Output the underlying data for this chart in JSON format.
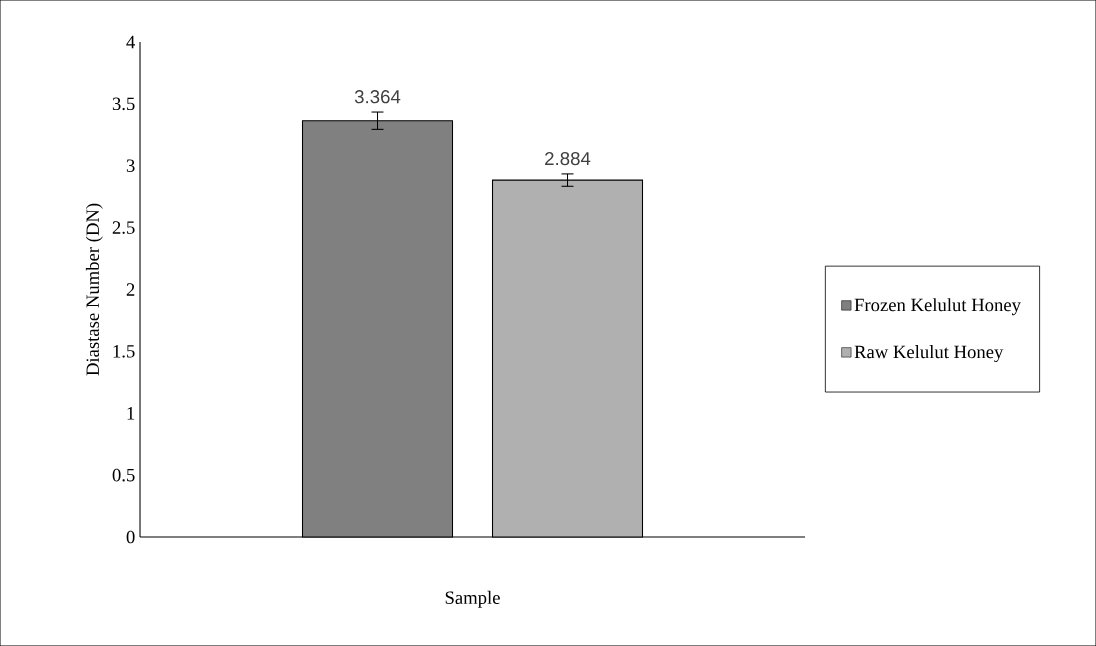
{
  "chart_data": {
    "type": "bar",
    "xlabel": "Sample",
    "ylabel": "Diastase Number (DN)",
    "categories": [
      null
    ],
    "series": [
      {
        "name": "Frozen Kelulut Honey",
        "color": "#808080",
        "values": [
          3.364
        ],
        "errors": [
          0.07
        ]
      },
      {
        "name": "Raw Kelulut Honey",
        "color": "#b0b0b0",
        "values": [
          2.884
        ],
        "errors": [
          0.05
        ]
      }
    ],
    "ylim": [
      0,
      4
    ],
    "yticks": [
      0,
      0.5,
      1,
      1.5,
      2,
      2.5,
      3,
      3.5,
      4
    ],
    "data_labels": true,
    "grid": false,
    "legend": "right"
  }
}
